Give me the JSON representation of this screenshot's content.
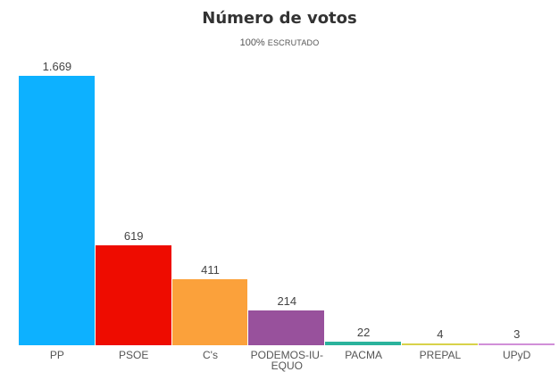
{
  "chart_data": {
    "type": "bar",
    "title": "Número de votos",
    "subtitle": "100% ESCRUTADO",
    "categories": [
      "PP",
      "PSOE",
      "C's",
      "PODEMOS-IU-EQUO",
      "PACMA",
      "PREPAL",
      "UPyD"
    ],
    "category_display": [
      "PP",
      "PSOE",
      "C's",
      "PODEMOS-IU-\nEQUO",
      "PACMA",
      "PREPAL",
      "UPyD"
    ],
    "values": [
      1669,
      619,
      411,
      214,
      22,
      4,
      3
    ],
    "value_labels": [
      "1.669",
      "619",
      "411",
      "214",
      "22",
      "4",
      "3"
    ],
    "colors": [
      "#0db1ff",
      "#ee0c00",
      "#fba13b",
      "#98519c",
      "#2bb39c",
      "#d8d24a",
      "#d18fd8"
    ],
    "xlabel": "",
    "ylabel": "",
    "grid": false,
    "legend": false
  },
  "header": {
    "title": "Número de votos",
    "subtitle_pct": "100%",
    "subtitle_text": "ESCRUTADO"
  }
}
